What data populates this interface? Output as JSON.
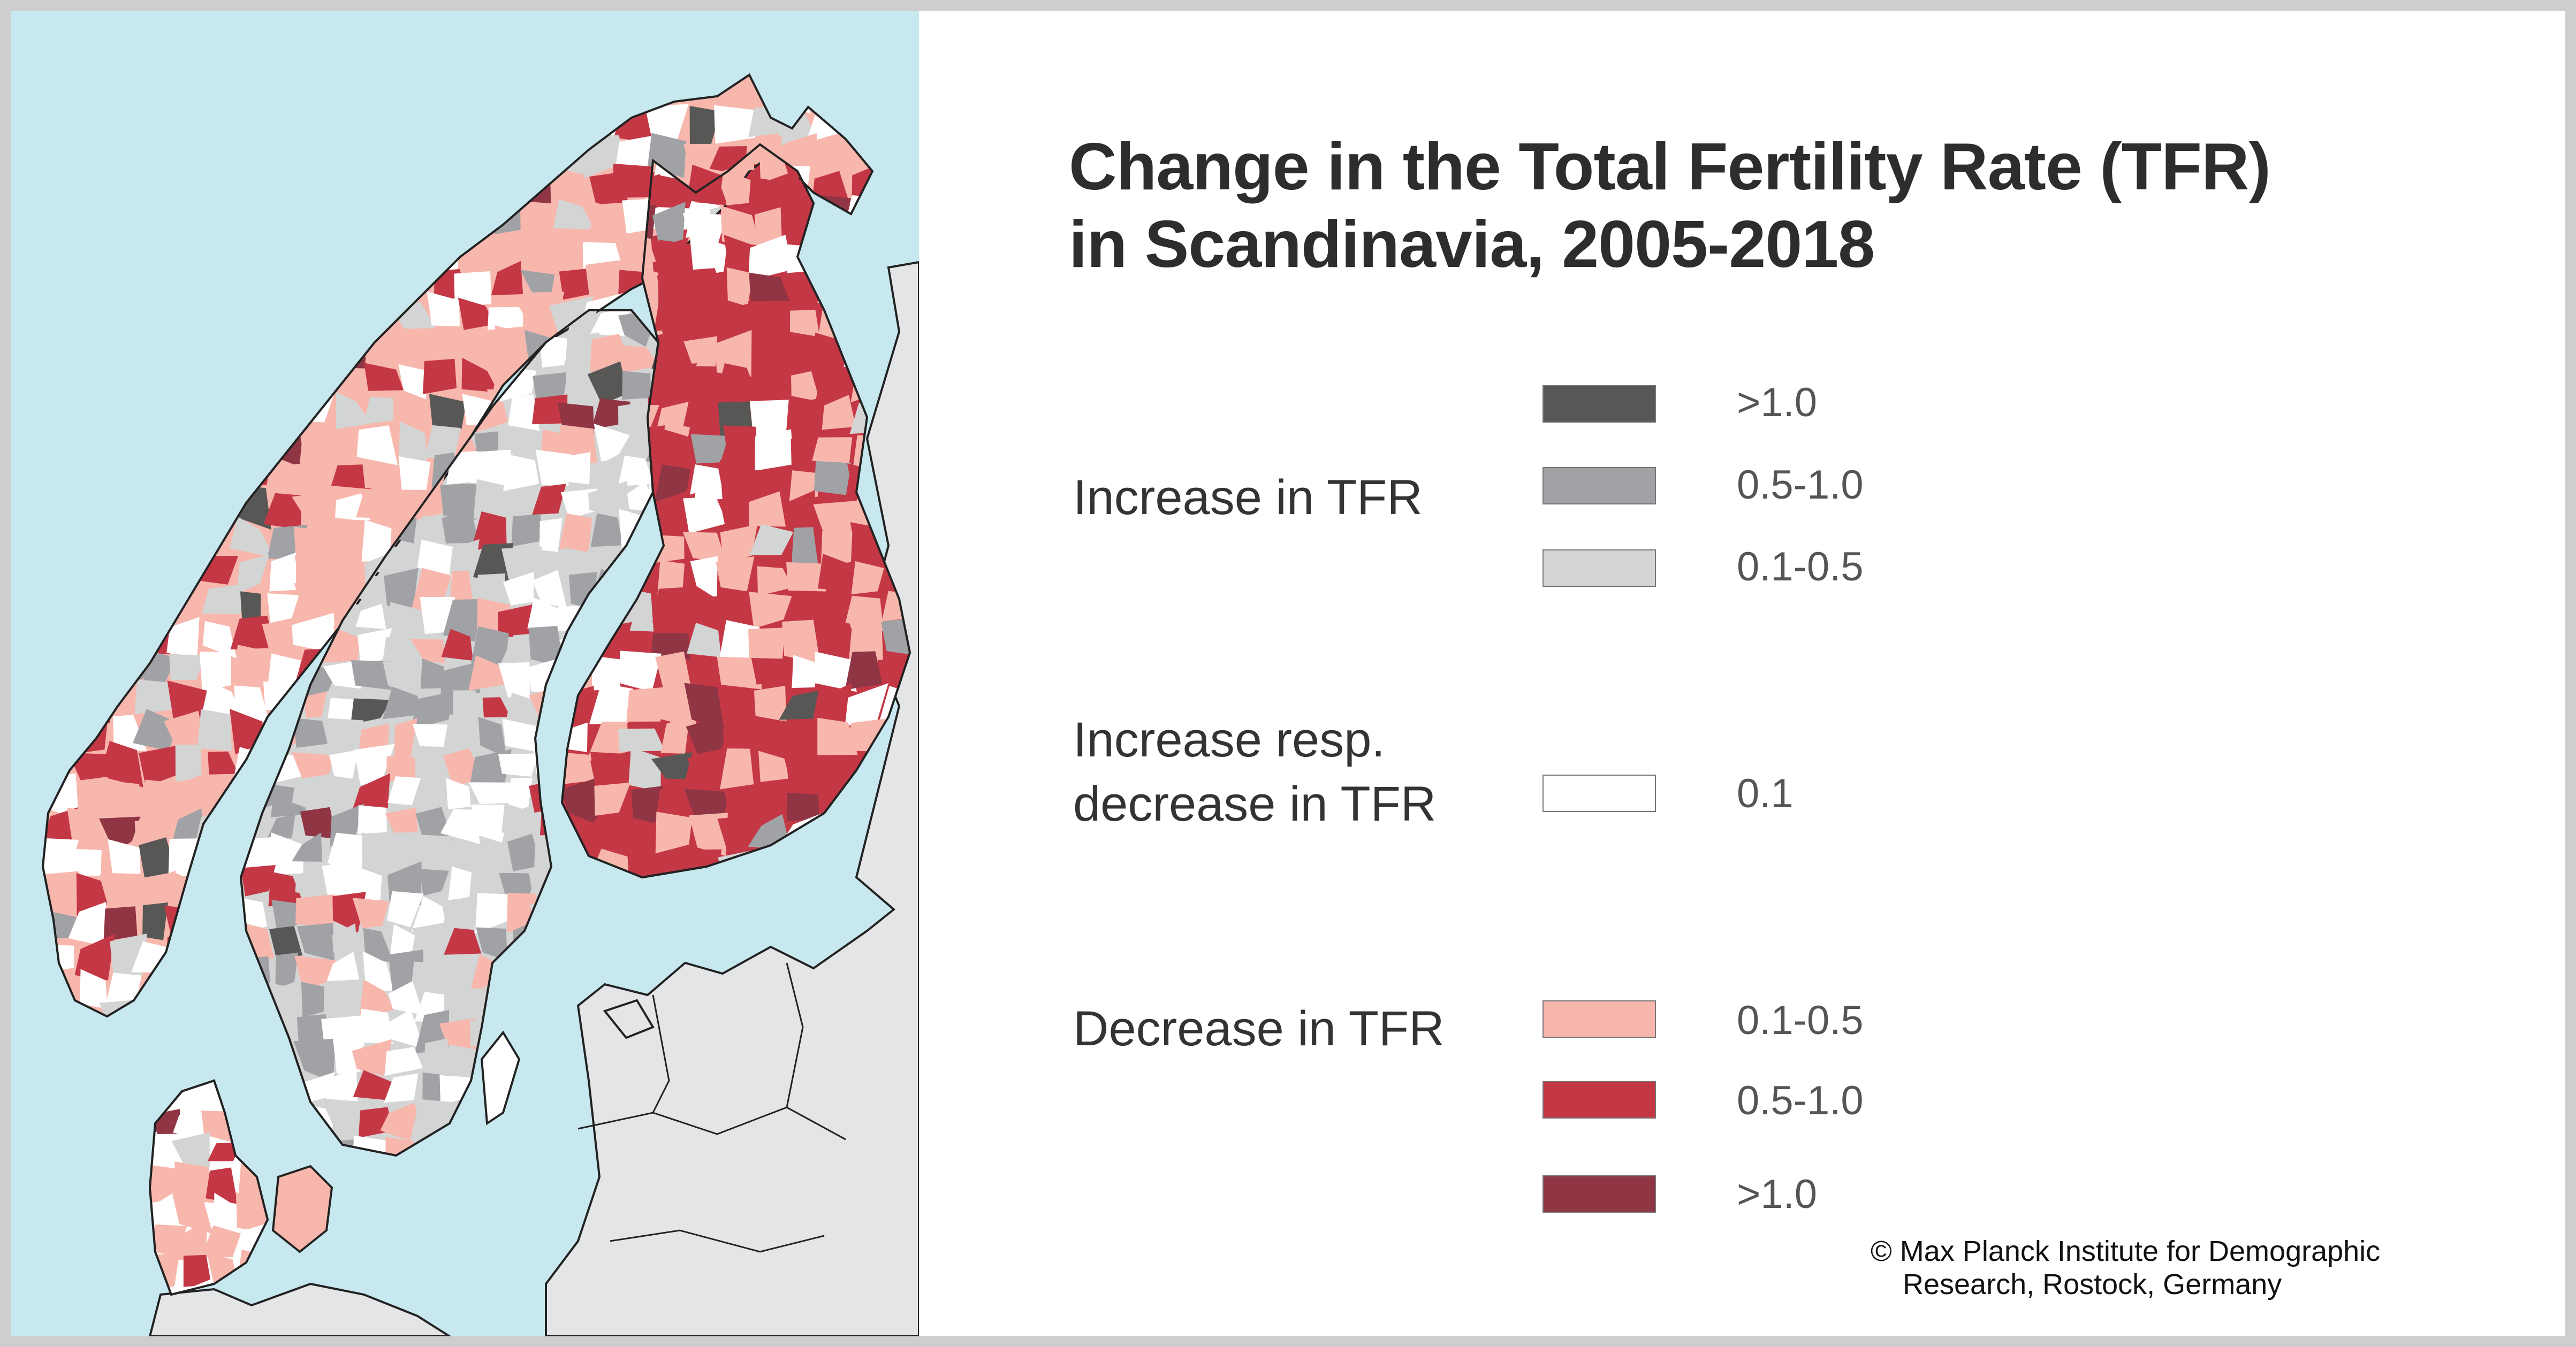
{
  "title": {
    "line1": "Change in the Total Fertility Rate (TFR)",
    "line2": "in Scandinavia, 2005-2018"
  },
  "legend": {
    "groups": [
      {
        "label_lines": [
          "Increase in TFR"
        ],
        "items": [
          {
            "range": ">1.0",
            "color": "#575755"
          },
          {
            "range": "0.5-1.0",
            "color": "#a0a2a6"
          },
          {
            "range": "0.1-0.5",
            "color": "#d3d5d4"
          }
        ]
      },
      {
        "label_lines": [
          "Increase resp.",
          "decrease in TFR"
        ],
        "items": [
          {
            "range": "0.1",
            "color": "#ffffff"
          }
        ]
      },
      {
        "label_lines": [
          "Decrease in TFR"
        ],
        "items": [
          {
            "range": "0.1-0.5",
            "color": "#f7b7ad"
          },
          {
            "range": "0.5-1.0",
            "color": "#c43745"
          },
          {
            "range": ">1.0",
            "color": "#8f3544"
          }
        ]
      }
    ]
  },
  "credit": {
    "line1": "© Max Planck Institute for Demographic",
    "line2": "Research, Rostock, Germany"
  },
  "map": {
    "sea_color": "#c8e8ef",
    "other_land_color": "#e4e5e7",
    "border_color": "#222222",
    "regions": [
      "Norway",
      "Sweden",
      "Finland",
      "Denmark"
    ]
  },
  "chart_data": {
    "type": "choropleth",
    "title": "Change in the Total Fertility Rate (TFR) in Scandinavia, 2005-2018",
    "regions_shown": [
      "Norway",
      "Sweden",
      "Finland",
      "Denmark"
    ],
    "classes": [
      {
        "group": "Increase in TFR",
        "range": ">1.0",
        "color": "#575755"
      },
      {
        "group": "Increase in TFR",
        "range": "0.5-1.0",
        "color": "#a0a2a6"
      },
      {
        "group": "Increase in TFR",
        "range": "0.1-0.5",
        "color": "#d3d5d4"
      },
      {
        "group": "Increase resp. decrease in TFR",
        "range": "0.1",
        "color": "#ffffff"
      },
      {
        "group": "Decrease in TFR",
        "range": "0.1-0.5",
        "color": "#f7b7ad"
      },
      {
        "group": "Decrease in TFR",
        "range": "0.5-1.0",
        "color": "#c43745"
      },
      {
        "group": "Decrease in TFR",
        "range": ">1.0",
        "color": "#8f3544"
      }
    ],
    "legend_position": "right",
    "source": "© Max Planck Institute for Demographic Research, Rostock, Germany"
  }
}
